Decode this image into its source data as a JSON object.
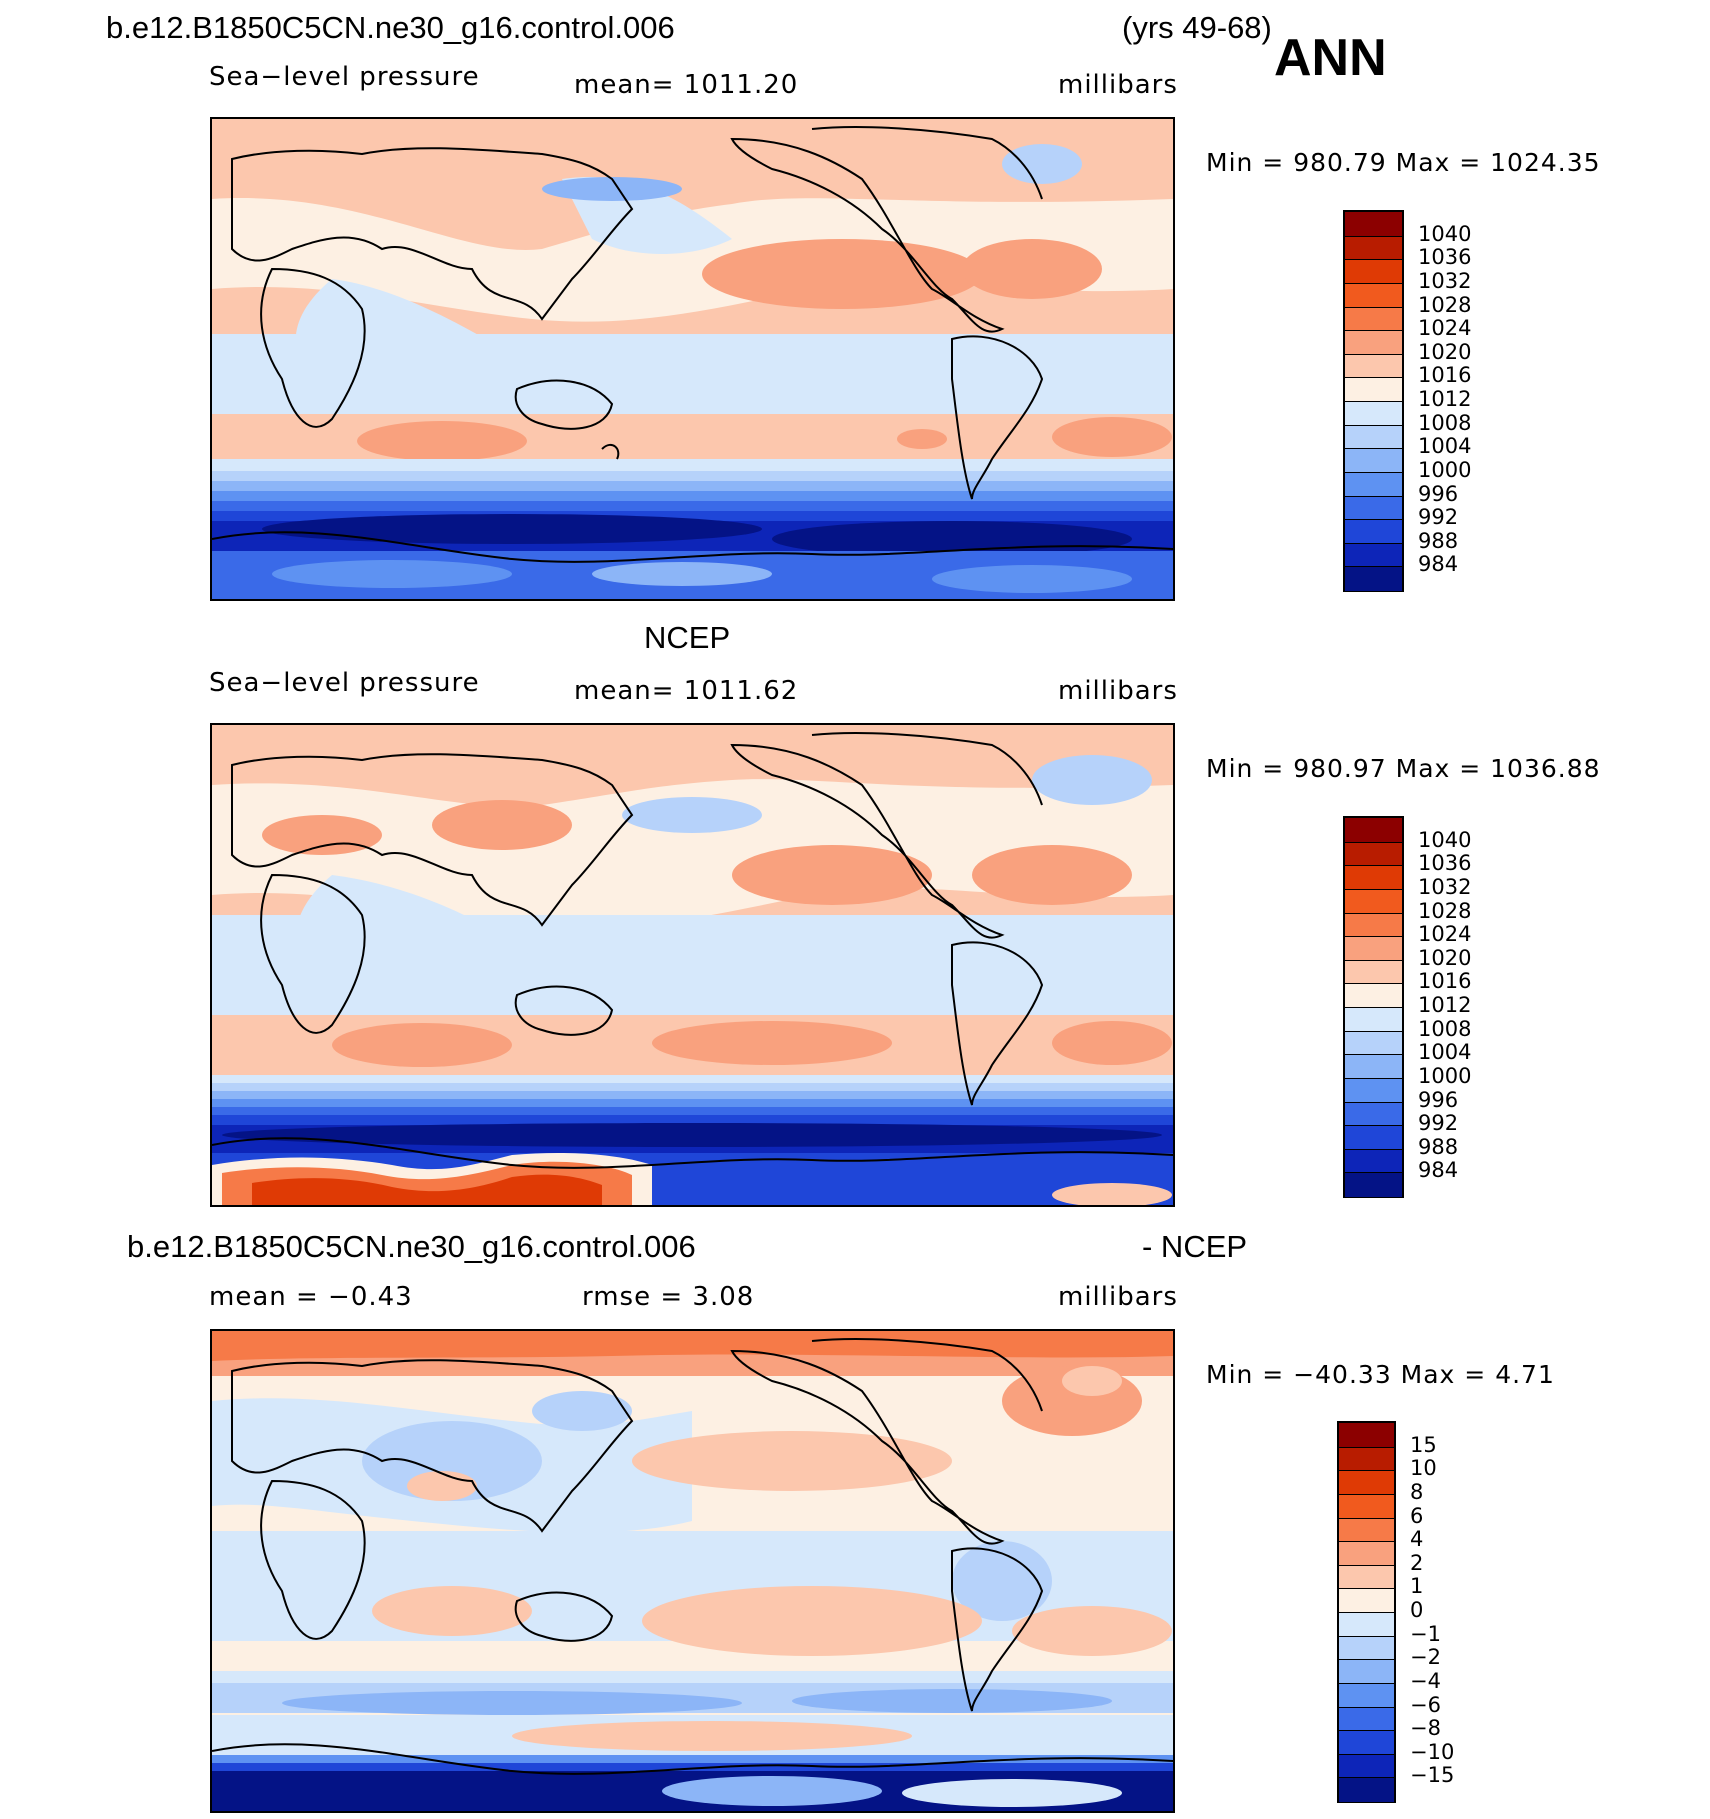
{
  "header": {
    "case_title": "b.e12.B1850C5CN.ne30_g16.control.006",
    "years": "(yrs 49-68)",
    "season": "ANN"
  },
  "panels": [
    {
      "title": "",
      "variable": "Sea−level pressure",
      "mean_label": "mean=  1011.20",
      "units": "millibars",
      "minmax": "Min  =  980.79  Max  =  1024.35",
      "colorbar": {
        "labels": [
          "1040",
          "1036",
          "1032",
          "1028",
          "1024",
          "1020",
          "1016",
          "1012",
          "1008",
          "1004",
          "1000",
          "996",
          "992",
          "988",
          "984"
        ],
        "colors": [
          "#8c0000",
          "#b81c00",
          "#df3a05",
          "#f15a1e",
          "#f67a48",
          "#f9a17e",
          "#fcc7ad",
          "#fdf0e3",
          "#d6e8fb",
          "#b6d2fa",
          "#8cb5f7",
          "#5e92f2",
          "#3a6ae8",
          "#1f46d8",
          "#0d25b8",
          "#041386"
        ]
      }
    },
    {
      "title": "NCEP",
      "variable": "Sea−level pressure",
      "mean_label": "mean=  1011.62",
      "units": "millibars",
      "minmax": "Min  =  980.97  Max  =  1036.88",
      "colorbar": {
        "labels": [
          "1040",
          "1036",
          "1032",
          "1028",
          "1024",
          "1020",
          "1016",
          "1012",
          "1008",
          "1004",
          "1000",
          "996",
          "992",
          "988",
          "984"
        ],
        "colors": [
          "#8c0000",
          "#b81c00",
          "#df3a05",
          "#f15a1e",
          "#f67a48",
          "#f9a17e",
          "#fcc7ad",
          "#fdf0e3",
          "#d6e8fb",
          "#b6d2fa",
          "#8cb5f7",
          "#5e92f2",
          "#3a6ae8",
          "#1f46d8",
          "#0d25b8",
          "#041386"
        ]
      }
    },
    {
      "title_left": "b.e12.B1850C5CN.ne30_g16.control.006",
      "title_right": "- NCEP",
      "mean_label": "mean  =    −0.43",
      "rmse_label": "rmse  =     3.08",
      "units": "millibars",
      "minmax": "Min  =  −40.33  Max  =     4.71",
      "colorbar": {
        "labels": [
          "15",
          "10",
          "8",
          "6",
          "4",
          "2",
          "1",
          "0",
          "−1",
          "−2",
          "−4",
          "−6",
          "−8",
          "−10",
          "−15"
        ],
        "colors": [
          "#8c0000",
          "#b81c00",
          "#df3a05",
          "#f15a1e",
          "#f67a48",
          "#f9a17e",
          "#fcc7ad",
          "#fdf0e3",
          "#d6e8fb",
          "#b6d2fa",
          "#8cb5f7",
          "#5e92f2",
          "#3a6ae8",
          "#1f46d8",
          "#0d25b8",
          "#041386"
        ]
      }
    }
  ]
}
